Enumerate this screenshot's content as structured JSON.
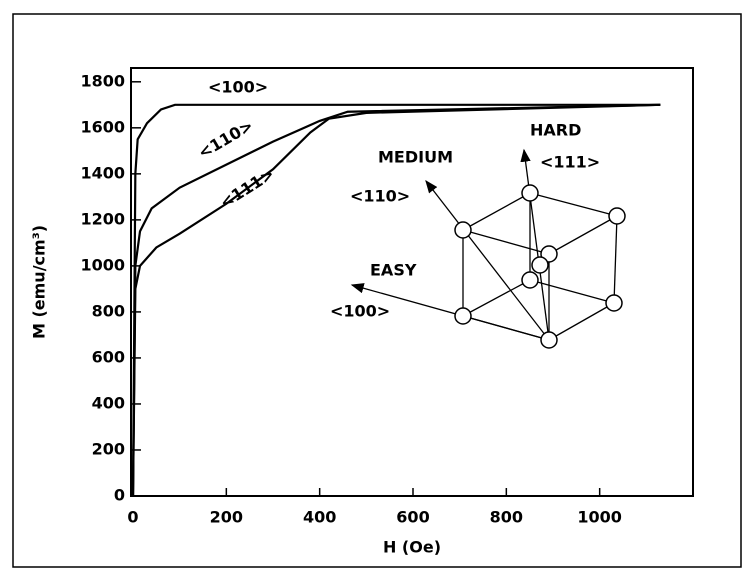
{
  "chart_data": {
    "type": "line",
    "x_label": "H (Oe)",
    "y_label": "M (emu/cm³)",
    "xlim": [
      0,
      1200
    ],
    "ylim": [
      0,
      1860
    ],
    "xticks": [
      0,
      200,
      400,
      600,
      800,
      1000
    ],
    "yticks": [
      0,
      200,
      400,
      600,
      800,
      1000,
      1200,
      1400,
      1600,
      1800
    ],
    "color": "#000000",
    "series": [
      {
        "name": "<100>",
        "x": [
          0,
          5,
          10,
          30,
          60,
          90,
          1130
        ],
        "values": [
          0,
          1400,
          1550,
          1620,
          1680,
          1700,
          1700
        ]
      },
      {
        "name": "<110>",
        "x": [
          0,
          5,
          15,
          40,
          100,
          200,
          300,
          400,
          460,
          1130
        ],
        "values": [
          0,
          1000,
          1150,
          1250,
          1340,
          1440,
          1540,
          1630,
          1670,
          1700
        ]
      },
      {
        "name": "<111>",
        "x": [
          0,
          5,
          15,
          50,
          100,
          200,
          300,
          380,
          420,
          500,
          1130
        ],
        "values": [
          0,
          900,
          1000,
          1080,
          1140,
          1270,
          1420,
          1580,
          1640,
          1665,
          1700
        ]
      }
    ],
    "annotations": [
      "HARD",
      "<111>",
      "MEDIUM",
      "<110>",
      "EASY",
      "<100>"
    ]
  }
}
